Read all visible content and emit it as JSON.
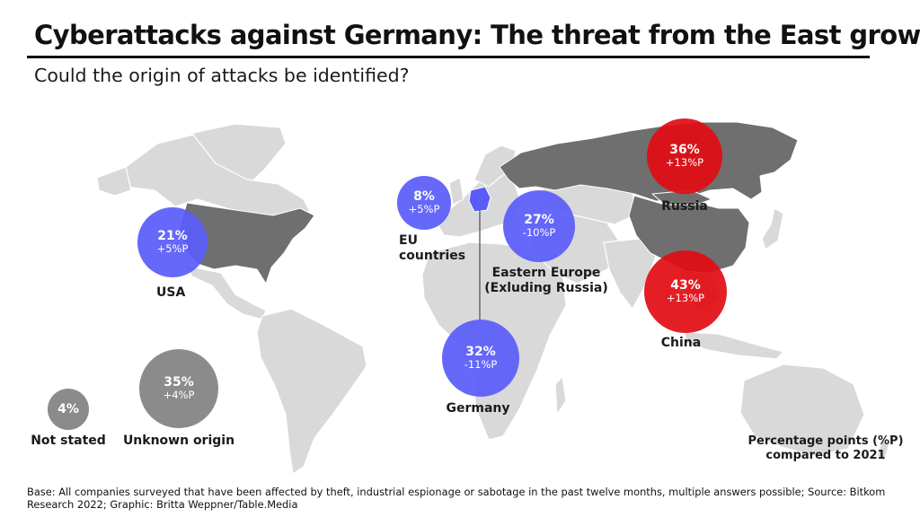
{
  "title": "Cyberattacks against Germany: The threat from the East grows",
  "subtitle": "Could the origin of attacks be identified?",
  "colors": {
    "eu_highlight": "#5a5cfa",
    "east_highlight": "#e10c12",
    "shaded_country": "#6f6f6f",
    "land": "#d9d9d9",
    "neutral_bubble": "#8b8b8b"
  },
  "regions": [
    {
      "id": "usa",
      "label": "USA",
      "percent": "21%",
      "change": "+5%P",
      "color": "blue"
    },
    {
      "id": "eu",
      "label": "EU\ncountries",
      "percent": "8%",
      "change": "+5%P",
      "color": "blue"
    },
    {
      "id": "eastern_europe",
      "label": "Eastern Europe\n(Exluding Russia)",
      "percent": "27%",
      "change": "-10%P",
      "color": "blue"
    },
    {
      "id": "germany",
      "label": "Germany",
      "percent": "32%",
      "change": "-11%P",
      "color": "blue"
    },
    {
      "id": "russia",
      "label": "Russia",
      "percent": "36%",
      "change": "+13%P",
      "color": "red"
    },
    {
      "id": "china",
      "label": "China",
      "percent": "43%",
      "change": "+13%P",
      "color": "red"
    },
    {
      "id": "not_stated",
      "label": "Not stated",
      "percent": "4%",
      "change": "",
      "color": "grey"
    },
    {
      "id": "unknown",
      "label": "Unknown origin",
      "percent": "35%",
      "change": "+4%P",
      "color": "grey"
    }
  ],
  "legend_note": "Percentage points (%P)\ncompared to 2021",
  "footnote": "Base: All companies surveyed that have been affected by theft, industrial espionage or sabotage in the past twelve months, multiple answers possible; Source: Bitkom Research 2022; Graphic: Britta Weppner/Table.Media"
}
